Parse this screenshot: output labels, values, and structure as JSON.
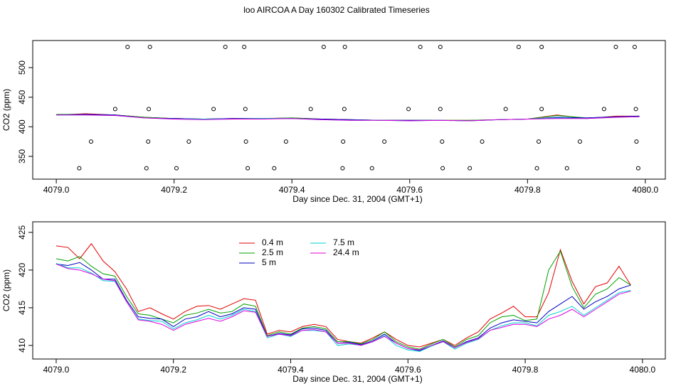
{
  "chart_data": [
    {
      "type": "line",
      "title": "loo AIRCOA A  Day 160302  Calibrated Timeseries",
      "x_label": "Day since Dec. 31, 2004 (GMT+1)",
      "y_label": "CO2 (ppm)",
      "xlim": [
        4078.96,
        4080.034
      ],
      "ylim": [
        311.5,
        545.8
      ],
      "xticks": [
        {
          "value": 4079,
          "label": "4079.0"
        },
        4079.2,
        4079.4,
        4079.6,
        4079.8,
        {
          "value": 4080,
          "label": "4080.0"
        }
      ],
      "yticks": [
        350,
        400,
        450,
        500
      ],
      "x": [
        4079.0,
        4079.05,
        4079.1,
        4079.15,
        4079.2,
        4079.25,
        4079.3,
        4079.35,
        4079.4,
        4079.45,
        4079.5,
        4079.55,
        4079.6,
        4079.65,
        4079.7,
        4079.75,
        4079.8,
        4079.85,
        4079.9,
        4079.95,
        4079.99
      ],
      "series": [
        {
          "color": "#e00000",
          "values": [
            420,
            422,
            420,
            416,
            414,
            413,
            414,
            414,
            415,
            413,
            412,
            411,
            411,
            411,
            411,
            412,
            413,
            420,
            414,
            418,
            418
          ]
        },
        {
          "color": "#00a000",
          "values": [
            421,
            421,
            420,
            416,
            414,
            413,
            414,
            414,
            415,
            413,
            412,
            411,
            411,
            411,
            411,
            412,
            413,
            419,
            415,
            417,
            418
          ]
        },
        {
          "color": "#0000c0",
          "values": [
            420,
            421,
            420,
            415,
            414,
            413,
            414,
            414,
            414,
            413,
            412,
            411,
            411,
            411,
            410,
            412,
            413,
            416,
            415,
            417,
            418
          ]
        },
        {
          "color": "#00d0d0",
          "values": [
            420,
            420,
            419,
            415,
            413,
            413,
            413,
            414,
            414,
            412,
            411,
            411,
            410,
            411,
            410,
            412,
            413,
            415,
            414,
            416,
            417
          ]
        },
        {
          "color": "#e000e0",
          "values": [
            420,
            420,
            419,
            415,
            413,
            412,
            413,
            413,
            414,
            412,
            411,
            411,
            410,
            411,
            410,
            412,
            413,
            414,
            414,
            416,
            417
          ]
        }
      ],
      "markers": {
        "x": [
          4079.121,
          4079.159,
          4079.287,
          4079.319,
          4079.454,
          4079.49,
          4079.618,
          4079.652,
          4079.785,
          4079.824,
          4079.95,
          4079.982,
          4079.1,
          4079.157,
          4079.267,
          4079.321,
          4079.432,
          4079.489,
          4079.598,
          4079.652,
          4079.763,
          4079.824,
          4079.93,
          4079.984,
          4079.059,
          4079.156,
          4079.225,
          4079.322,
          4079.39,
          4079.487,
          4079.557,
          4079.655,
          4079.723,
          4079.819,
          4079.889,
          4079.985,
          4079.039,
          4079.153,
          4079.204,
          4079.325,
          4079.37,
          4079.486,
          4079.536,
          4079.656,
          4079.702,
          4079.816,
          4079.867,
          4079.988
        ],
        "y": [
          535,
          535,
          535,
          535,
          535,
          535,
          535,
          535,
          535,
          535,
          535,
          535,
          430,
          430,
          430,
          430,
          430,
          430,
          430,
          430,
          430,
          430,
          430,
          430,
          375,
          375,
          375,
          375,
          375,
          375,
          375,
          375,
          375,
          375,
          375,
          375,
          330,
          330,
          330,
          330,
          330,
          330,
          330,
          330,
          330,
          330,
          330,
          330
        ]
      }
    },
    {
      "type": "line",
      "x_label": "Day since Dec. 31, 2004 (GMT+1)",
      "y_label": "CO2 (ppm)",
      "xlim": [
        4078.96,
        4080.039
      ],
      "ylim": [
        408.2,
        426.4
      ],
      "xticks": [
        {
          "value": 4079,
          "label": "4079.0"
        },
        4079.2,
        4079.4,
        4079.6,
        4079.8,
        {
          "value": 4080,
          "label": "4080.0"
        }
      ],
      "yticks": [
        410,
        415,
        420,
        425
      ],
      "x": [
        4079.0,
        4079.02,
        4079.04,
        4079.06,
        4079.08,
        4079.1,
        4079.12,
        4079.14,
        4079.16,
        4079.18,
        4079.2,
        4079.22,
        4079.24,
        4079.26,
        4079.28,
        4079.3,
        4079.32,
        4079.34,
        4079.36,
        4079.38,
        4079.4,
        4079.42,
        4079.44,
        4079.46,
        4079.48,
        4079.5,
        4079.52,
        4079.54,
        4079.56,
        4079.58,
        4079.6,
        4079.62,
        4079.64,
        4079.66,
        4079.68,
        4079.7,
        4079.72,
        4079.74,
        4079.76,
        4079.78,
        4079.8,
        4079.82,
        4079.84,
        4079.86,
        4079.88,
        4079.9,
        4079.92,
        4079.94,
        4079.96,
        4079.98
      ],
      "series": [
        {
          "name": "0.4 m",
          "color": "#e00000",
          "values": [
            423.2,
            423.0,
            421.5,
            423.5,
            421.2,
            419.8,
            417.5,
            414.5,
            415.0,
            414.2,
            413.5,
            414.5,
            415.2,
            415.3,
            414.8,
            415.5,
            416.2,
            416.0,
            411.5,
            412.0,
            411.8,
            412.5,
            412.8,
            412.5,
            410.8,
            410.5,
            410.3,
            411.0,
            411.8,
            410.8,
            410.0,
            409.8,
            410.3,
            410.8,
            410.0,
            411.0,
            411.8,
            413.5,
            414.3,
            415.2,
            413.8,
            413.8,
            417.0,
            422.7,
            418.5,
            415.5,
            417.8,
            418.3,
            420.5,
            418.0
          ]
        },
        {
          "name": "2.5 m",
          "color": "#00a000",
          "values": [
            421.5,
            421.2,
            421.8,
            420.5,
            419.5,
            419.2,
            416.5,
            414.2,
            414.0,
            413.5,
            413.0,
            414.0,
            414.3,
            414.8,
            414.3,
            414.5,
            415.5,
            415.2,
            411.3,
            411.8,
            411.5,
            412.3,
            412.5,
            412.2,
            410.5,
            410.5,
            410.2,
            410.8,
            411.8,
            410.5,
            409.8,
            409.5,
            410.2,
            410.8,
            409.8,
            410.8,
            411.3,
            413.0,
            413.8,
            414.0,
            413.3,
            413.5,
            420.0,
            422.5,
            417.8,
            415.0,
            416.8,
            417.5,
            419.0,
            418.0
          ]
        },
        {
          "name": "5 m",
          "color": "#0000c0",
          "values": [
            420.8,
            420.6,
            421.0,
            420.0,
            418.8,
            418.8,
            416.0,
            413.8,
            413.6,
            413.5,
            412.5,
            413.5,
            413.8,
            414.5,
            413.8,
            414.2,
            415.0,
            414.8,
            411.2,
            411.6,
            411.4,
            412.2,
            412.3,
            412.0,
            410.3,
            410.4,
            410.1,
            410.6,
            411.5,
            410.3,
            409.6,
            409.3,
            410.0,
            410.6,
            409.7,
            410.5,
            411.0,
            412.3,
            413.0,
            413.4,
            413.2,
            413.0,
            414.5,
            415.5,
            416.5,
            414.8,
            415.8,
            416.5,
            417.5,
            418.0
          ]
        },
        {
          "name": "7.5 m",
          "color": "#00d0d0",
          "values": [
            420.9,
            420.3,
            420.3,
            419.6,
            418.6,
            418.5,
            415.8,
            413.5,
            413.3,
            413.2,
            412.2,
            413.0,
            413.4,
            414.0,
            413.5,
            414.0,
            414.8,
            414.5,
            411.0,
            411.5,
            411.2,
            412.0,
            412.0,
            411.8,
            410.0,
            410.2,
            410.0,
            410.5,
            411.3,
            410.0,
            409.4,
            409.2,
            409.9,
            410.5,
            409.5,
            410.3,
            410.8,
            412.0,
            412.6,
            413.0,
            413.0,
            412.6,
            414.0,
            414.5,
            415.2,
            414.0,
            415.0,
            416.0,
            417.0,
            417.3
          ]
        },
        {
          "name": "24.4 m",
          "color": "#e000e0",
          "values": [
            420.8,
            420.2,
            420.0,
            419.5,
            418.8,
            418.6,
            415.8,
            413.4,
            413.2,
            412.8,
            412.0,
            412.8,
            413.2,
            413.6,
            413.2,
            413.8,
            414.6,
            414.4,
            411.2,
            411.5,
            411.3,
            412.0,
            412.1,
            411.8,
            410.3,
            410.3,
            410.0,
            410.5,
            411.2,
            410.3,
            409.6,
            409.4,
            410.0,
            410.5,
            409.7,
            410.4,
            410.9,
            412.0,
            412.4,
            412.8,
            412.8,
            412.5,
            413.5,
            414.0,
            414.8,
            413.8,
            414.8,
            415.8,
            416.8,
            417.2
          ]
        }
      ],
      "legend": "top-left"
    }
  ]
}
